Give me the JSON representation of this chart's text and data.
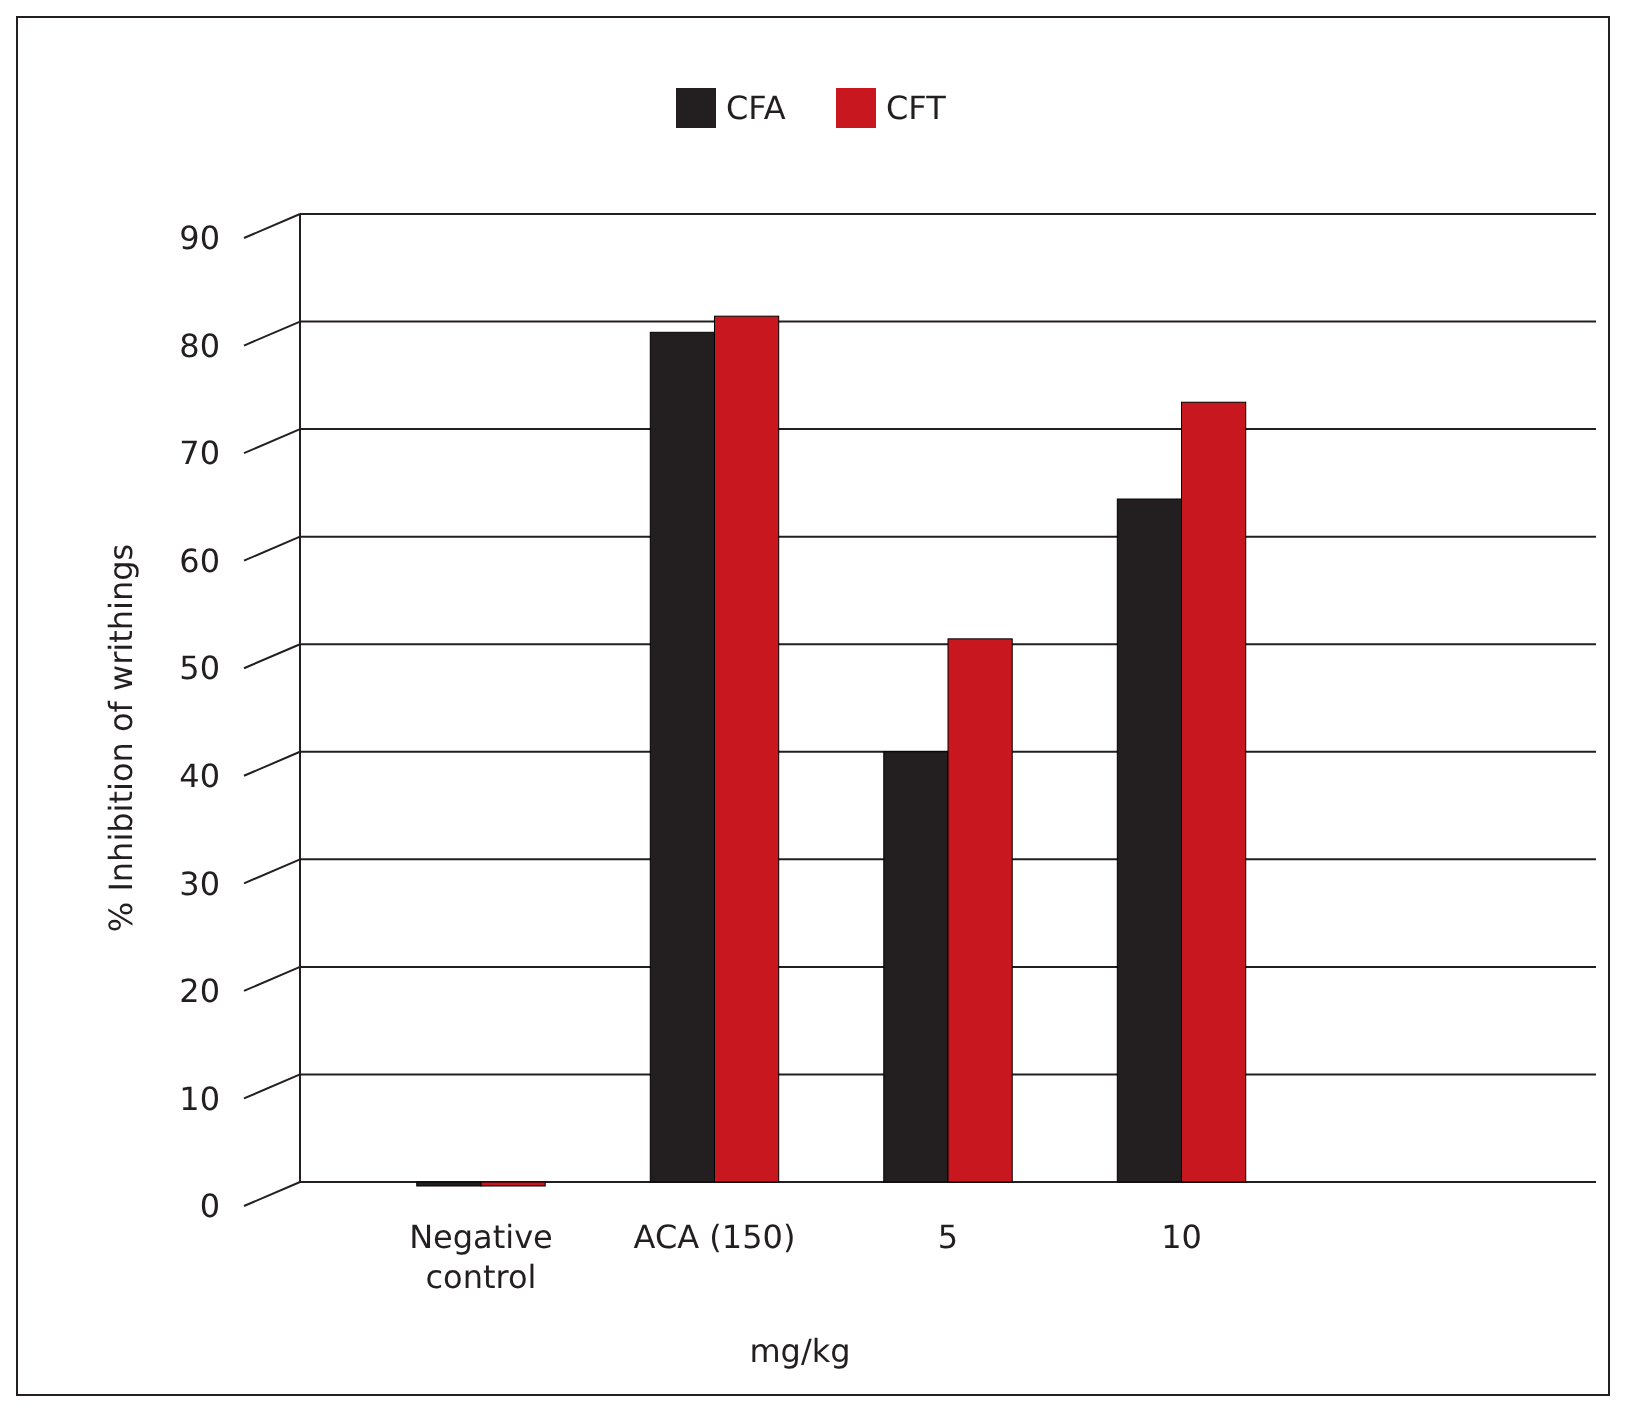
{
  "chart_data": {
    "type": "bar",
    "xlabel": "mg/kg",
    "ylabel": "% Inhibition of writhings",
    "categories": [
      "Negative control",
      "ACA (150)",
      "5",
      "10",
      null
    ],
    "series": [
      {
        "name": "CFA",
        "color": "#231f20",
        "values": [
          0,
          79,
          40,
          63.5,
          null
        ]
      },
      {
        "name": "CFT",
        "color": "#c8171e",
        "values": [
          0,
          80.5,
          50.5,
          72.5,
          null
        ]
      }
    ],
    "ylim": [
      0,
      90
    ],
    "yticks": [
      0,
      10,
      20,
      30,
      40,
      50,
      60,
      70,
      80,
      90
    ],
    "grid": "y",
    "legend": "top"
  }
}
